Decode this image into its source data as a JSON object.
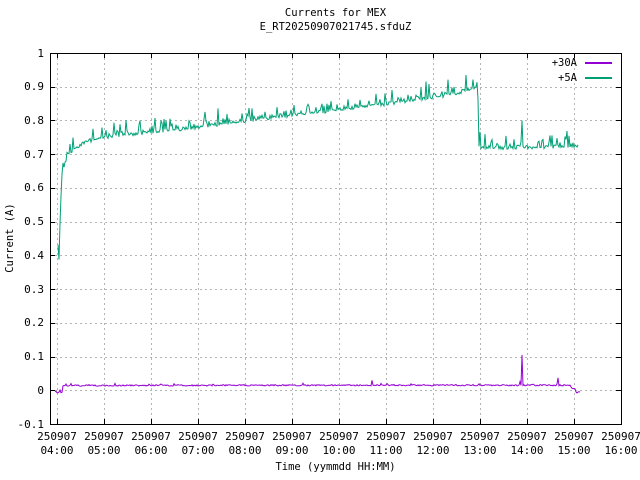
{
  "chart_data": {
    "type": "line",
    "title": "Currents for MEX",
    "subtitle": "E_RT20250907021745.sfduZ",
    "xlabel": "Time (yymmdd HH:MM)",
    "ylabel": "Current (A)",
    "ylim": [
      -0.1,
      1.0
    ],
    "xlim_hours": [
      3.851,
      16.0
    ],
    "grid": true,
    "grid_color": "#b4b4b4",
    "frame_color": "#000000",
    "legend_position": "top-right",
    "y_ticks": [
      {
        "v": -0.1,
        "label": "-0.1"
      },
      {
        "v": 0,
        "label": "0"
      },
      {
        "v": 0.1,
        "label": "0.1"
      },
      {
        "v": 0.2,
        "label": "0.2"
      },
      {
        "v": 0.3,
        "label": "0.3"
      },
      {
        "v": 0.4,
        "label": "0.4"
      },
      {
        "v": 0.5,
        "label": "0.5"
      },
      {
        "v": 0.6,
        "label": "0.6"
      },
      {
        "v": 0.7,
        "label": "0.7"
      },
      {
        "v": 0.8,
        "label": "0.8"
      },
      {
        "v": 0.9,
        "label": "0.9"
      },
      {
        "v": 1,
        "label": "1"
      }
    ],
    "x_ticks": [
      {
        "hour": 4,
        "line1": "250907",
        "line2": "04:00"
      },
      {
        "hour": 5,
        "line1": "250907",
        "line2": "05:00"
      },
      {
        "hour": 6,
        "line1": "250907",
        "line2": "06:00"
      },
      {
        "hour": 7,
        "line1": "250907",
        "line2": "07:00"
      },
      {
        "hour": 8,
        "line1": "250907",
        "line2": "08:00"
      },
      {
        "hour": 9,
        "line1": "250907",
        "line2": "09:00"
      },
      {
        "hour": 10,
        "line1": "250907",
        "line2": "10:00"
      },
      {
        "hour": 11,
        "line1": "250907",
        "line2": "11:00"
      },
      {
        "hour": 12,
        "line1": "250907",
        "line2": "12:00"
      },
      {
        "hour": 13,
        "line1": "250907",
        "line2": "13:00"
      },
      {
        "hour": 14,
        "line1": "250907",
        "line2": "14:00"
      },
      {
        "hour": 15,
        "line1": "250907",
        "line2": "15:00"
      },
      {
        "hour": 16,
        "line1": "250907",
        "line2": "16:00"
      }
    ],
    "series": [
      {
        "name": "+30A",
        "color": "#9400d3",
        "keypoints": [
          [
            3.96,
            -0.002
          ],
          [
            4.0,
            -0.006
          ],
          [
            4.11,
            -0.006
          ],
          [
            4.12,
            0.014
          ],
          [
            10.0,
            0.015
          ],
          [
            14.93,
            0.015
          ],
          [
            14.95,
            0.005
          ],
          [
            15.02,
            0.005
          ],
          [
            15.04,
            -0.006
          ],
          [
            15.12,
            -0.006
          ]
        ],
        "noise": 0.002,
        "spike_prob": 0.1,
        "spike_amp": 0.015,
        "spikes": [
          {
            "hour": 13.894,
            "value": 0.105
          },
          {
            "hour": 14.66,
            "value": 0.037
          }
        ]
      },
      {
        "name": "+5A",
        "color": "#00a076",
        "keypoints": [
          [
            4.02,
            0.4
          ],
          [
            4.045,
            0.383
          ],
          [
            4.07,
            0.52
          ],
          [
            4.1,
            0.63
          ],
          [
            4.14,
            0.66
          ],
          [
            4.22,
            0.69
          ],
          [
            4.33,
            0.712
          ],
          [
            4.5,
            0.728
          ],
          [
            4.7,
            0.74
          ],
          [
            5.0,
            0.75
          ],
          [
            5.5,
            0.758
          ],
          [
            6.0,
            0.765
          ],
          [
            6.5,
            0.772
          ],
          [
            7.0,
            0.78
          ],
          [
            7.5,
            0.789
          ],
          [
            8.0,
            0.798
          ],
          [
            8.5,
            0.807
          ],
          [
            9.0,
            0.815
          ],
          [
            9.5,
            0.823
          ],
          [
            10.0,
            0.831
          ],
          [
            10.5,
            0.84
          ],
          [
            11.0,
            0.849
          ],
          [
            11.5,
            0.858
          ],
          [
            12.0,
            0.868
          ],
          [
            12.4,
            0.878
          ],
          [
            12.7,
            0.888
          ],
          [
            12.93,
            0.9
          ],
          [
            12.955,
            0.905
          ],
          [
            12.965,
            0.72
          ],
          [
            13.3,
            0.718
          ],
          [
            14.0,
            0.72
          ],
          [
            14.7,
            0.722
          ],
          [
            15.09,
            0.724
          ]
        ],
        "noise": 0.005,
        "spike_prob": 0.45,
        "spike_amp": 0.055,
        "spikes": [
          {
            "hour": 13.9,
            "value": 0.8
          }
        ]
      }
    ]
  }
}
